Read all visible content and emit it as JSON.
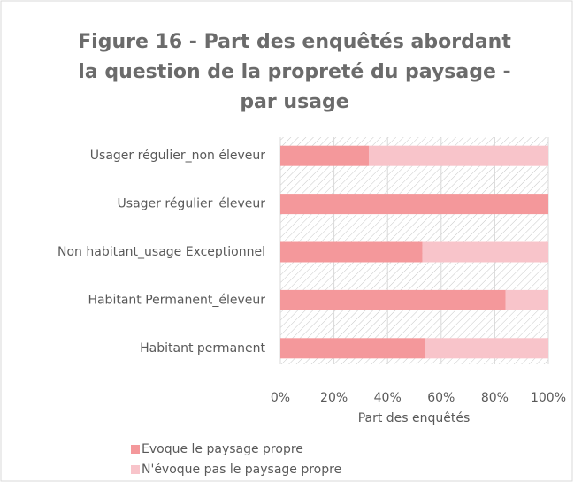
{
  "chart_data": {
    "type": "stacked_barh",
    "title": [
      "Figure 16  - Part des enquêtés abordant",
      "la question de la propreté du paysage -",
      "par usage"
    ],
    "categories": [
      "Usager régulier_non éleveur",
      "Usager régulier_éleveur",
      "Non habitant_usage Exceptionnel",
      "Habitant Permanent_éleveur",
      "Habitant permanent"
    ],
    "series": [
      {
        "name": "Evoque le paysage propre",
        "color": "#f4989b",
        "values": [
          33,
          100,
          53,
          84,
          54
        ]
      },
      {
        "name": "N'évoque pas le paysage propre",
        "color": "#f8c4ca",
        "values": [
          67,
          0,
          47,
          16,
          46
        ]
      }
    ],
    "xlabel": "Part des enquêtés",
    "xlim": [
      0,
      100
    ],
    "xticks": [
      {
        "value": 0,
        "label": "0%"
      },
      {
        "value": 20,
        "label": "20%"
      },
      {
        "value": 40,
        "label": "40%"
      },
      {
        "value": 60,
        "label": "60%"
      },
      {
        "value": 80,
        "label": "80%"
      },
      {
        "value": 100,
        "label": "100%"
      }
    ],
    "grid": true,
    "legend": "bottom"
  }
}
